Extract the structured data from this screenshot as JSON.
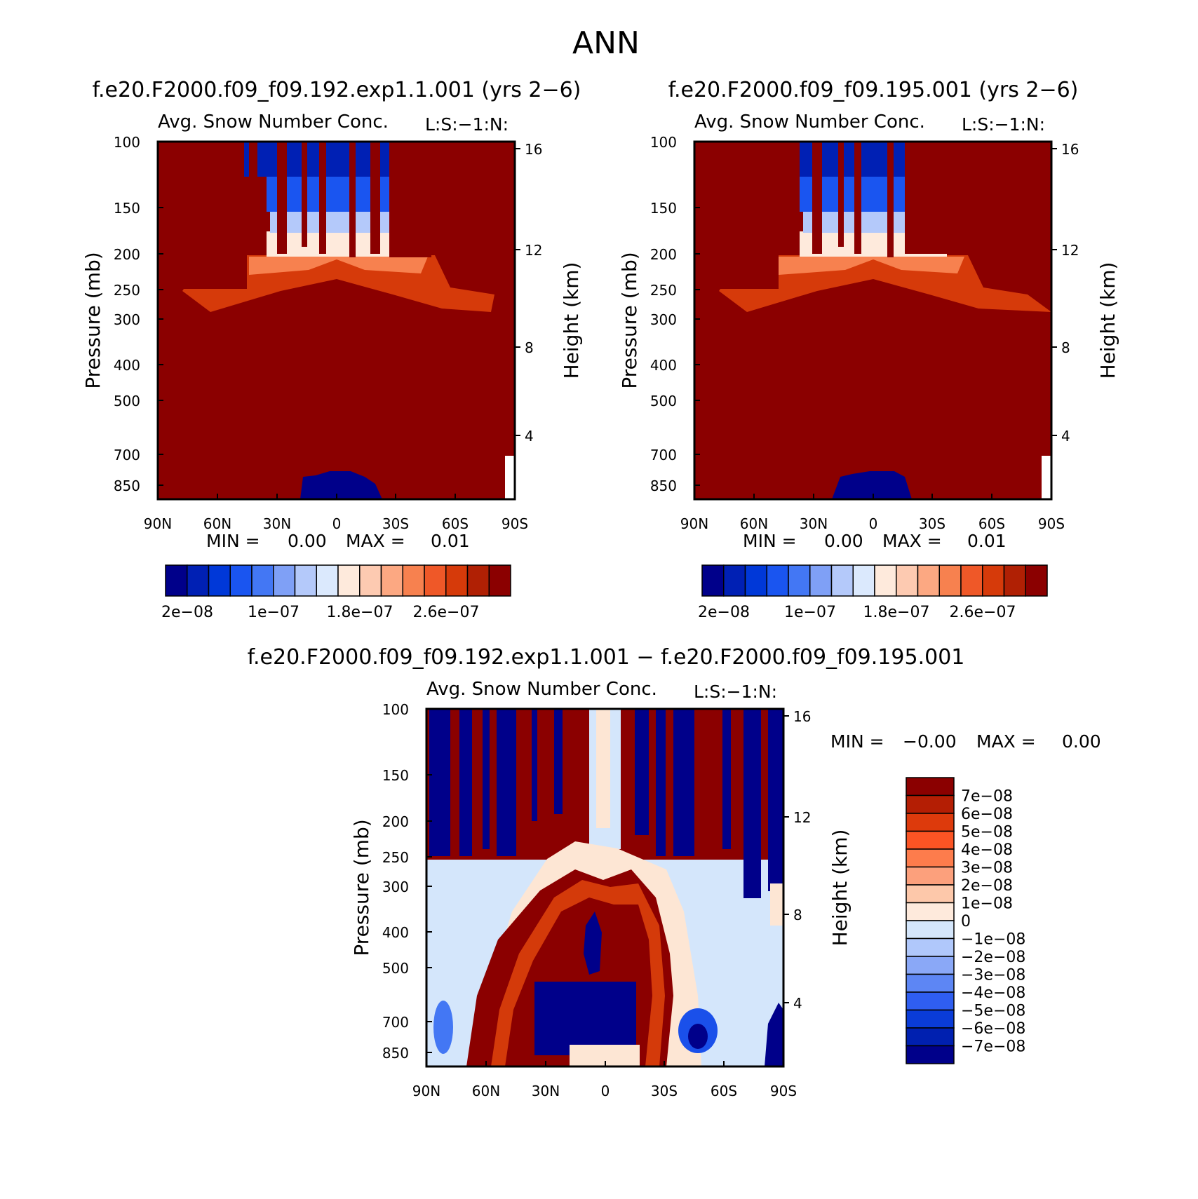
{
  "page_title": "ANN",
  "colors": {
    "field_dark_red": "#8b0000",
    "field_dark_blue": "#0a0a8c",
    "diff_light_blue": "#d4e6fb",
    "diff_light_cream": "#fde6d4"
  },
  "chart_data": [
    {
      "type": "heatmap",
      "title": "f.e20.F2000.f09_f09.192.exp1.1.001 (yrs 2−6)",
      "subtitle": "Avg. Snow Number Conc.",
      "corner_label": "L:S:−1:N:",
      "ylabel": "Pressure (mb)",
      "ylabel_right": "Height (km)",
      "x_ticks": [
        "90N",
        "60N",
        "30N",
        "0",
        "30S",
        "60S",
        "90S"
      ],
      "y_ticks": [
        "100",
        "150",
        "200",
        "250",
        "300",
        "400",
        "500",
        "700",
        "850"
      ],
      "y_ticks_right": [
        "16",
        "12",
        "8",
        "4"
      ],
      "min_label": "MIN =",
      "min_value": "0.00",
      "max_label": "MAX =",
      "max_value": "0.01",
      "colorbar_labels": [
        "2e−08",
        "1e−07",
        "1.8e−07",
        "2.6e−07"
      ],
      "colorbar_colors": [
        "#00008a",
        "#0020b4",
        "#0038d8",
        "#1a55f0",
        "#4377f4",
        "#7fa0f6",
        "#b4c9fa",
        "#dbe9fd",
        "#feeadc",
        "#fdcab1",
        "#fca882",
        "#f7814f",
        "#ef5828",
        "#d63a0a",
        "#b02004",
        "#8b0000"
      ]
    },
    {
      "type": "heatmap",
      "title": "f.e20.F2000.f09_f09.195.001 (yrs 2−6)",
      "subtitle": "Avg. Snow Number Conc.",
      "corner_label": "L:S:−1:N:",
      "ylabel": "Pressure (mb)",
      "ylabel_right": "Height (km)",
      "x_ticks": [
        "90N",
        "60N",
        "30N",
        "0",
        "30S",
        "60S",
        "90S"
      ],
      "y_ticks": [
        "100",
        "150",
        "200",
        "250",
        "300",
        "400",
        "500",
        "700",
        "850"
      ],
      "y_ticks_right": [
        "16",
        "12",
        "8",
        "4"
      ],
      "min_label": "MIN =",
      "min_value": "0.00",
      "max_label": "MAX =",
      "max_value": "0.01",
      "colorbar_labels": [
        "2e−08",
        "1e−07",
        "1.8e−07",
        "2.6e−07"
      ],
      "colorbar_colors": [
        "#00008a",
        "#0020b4",
        "#0038d8",
        "#1a55f0",
        "#4377f4",
        "#7fa0f6",
        "#b4c9fa",
        "#dbe9fd",
        "#feeadc",
        "#fdcab1",
        "#fca882",
        "#f7814f",
        "#ef5828",
        "#d63a0a",
        "#b02004",
        "#8b0000"
      ]
    },
    {
      "type": "heatmap",
      "title": "f.e20.F2000.f09_f09.192.exp1.1.001 − f.e20.F2000.f09_f09.195.001",
      "subtitle": "Avg. Snow Number Conc.",
      "corner_label": "L:S:−1:N:",
      "ylabel": "Pressure (mb)",
      "ylabel_right": "Height (km)",
      "x_ticks": [
        "90N",
        "60N",
        "30N",
        "0",
        "30S",
        "60S",
        "90S"
      ],
      "y_ticks": [
        "100",
        "150",
        "200",
        "250",
        "300",
        "400",
        "500",
        "700",
        "850"
      ],
      "y_ticks_right": [
        "16",
        "12",
        "8",
        "4"
      ],
      "min_label": "MIN =",
      "min_value": "−0.00",
      "max_label": "MAX =",
      "max_value": "0.00",
      "colorbar_labels": [
        "7e−08",
        "6e−08",
        "5e−08",
        "4e−08",
        "3e−08",
        "2e−08",
        "1e−08",
        "0",
        "−1e−08",
        "−2e−08",
        "−3e−08",
        "−4e−08",
        "−5e−08",
        "−6e−08",
        "−7e−08"
      ],
      "colorbar_colors": [
        "#8b0000",
        "#b41e04",
        "#dd3a0c",
        "#fb5424",
        "#fd7c4c",
        "#fca07c",
        "#fdc8aa",
        "#feeadc",
        "#d4e6fb",
        "#b0c8fb",
        "#8aa8f7",
        "#5d86f4",
        "#2f5ef0",
        "#0a3cd8",
        "#0020b0",
        "#00008a"
      ]
    }
  ]
}
